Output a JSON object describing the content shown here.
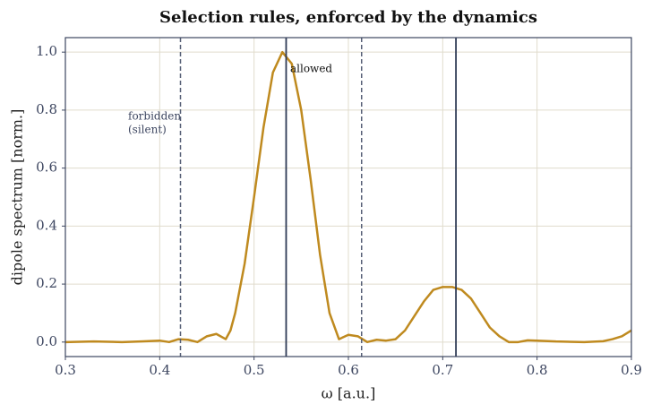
{
  "chart_data": {
    "type": "line",
    "title": "Selection rules, enforced by the dynamics",
    "xlabel": "ω  [a.u.]",
    "ylabel": "dipole spectrum  [norm.]",
    "x": [
      0.3,
      0.33,
      0.36,
      0.38,
      0.4,
      0.41,
      0.42,
      0.43,
      0.44,
      0.45,
      0.46,
      0.47,
      0.475,
      0.48,
      0.49,
      0.5,
      0.51,
      0.52,
      0.53,
      0.54,
      0.55,
      0.56,
      0.57,
      0.58,
      0.59,
      0.6,
      0.61,
      0.62,
      0.63,
      0.64,
      0.65,
      0.66,
      0.67,
      0.68,
      0.69,
      0.7,
      0.71,
      0.72,
      0.73,
      0.74,
      0.75,
      0.76,
      0.77,
      0.78,
      0.79,
      0.8,
      0.82,
      0.85,
      0.87,
      0.88,
      0.89,
      0.9
    ],
    "series": [
      {
        "color": "#bf8a1f",
        "values": [
          0.0,
          0.002,
          0.0,
          0.002,
          0.005,
          0.0,
          0.01,
          0.008,
          0.0,
          0.02,
          0.028,
          0.01,
          0.04,
          0.1,
          0.27,
          0.5,
          0.74,
          0.93,
          1.0,
          0.96,
          0.8,
          0.56,
          0.3,
          0.1,
          0.01,
          0.025,
          0.02,
          0.0,
          0.008,
          0.005,
          0.01,
          0.04,
          0.09,
          0.14,
          0.18,
          0.19,
          0.19,
          0.18,
          0.15,
          0.1,
          0.05,
          0.02,
          0.0,
          0.0,
          0.006,
          0.005,
          0.002,
          0.0,
          0.003,
          0.01,
          0.02,
          0.04
        ]
      }
    ],
    "vlines": [
      {
        "x": 0.422,
        "style": "dashed"
      },
      {
        "x": 0.534,
        "style": "solid"
      },
      {
        "x": 0.614,
        "style": "dashed"
      },
      {
        "x": 0.714,
        "style": "solid"
      }
    ],
    "annotations": [
      {
        "lines": [
          "allowed"
        ]
      },
      {
        "lines": [
          "forbidden",
          "(silent)"
        ]
      }
    ],
    "xlim": [
      0.3,
      0.9
    ],
    "ylim": [
      -0.05,
      1.05
    ],
    "xticks": [
      0.3,
      0.4,
      0.5,
      0.6,
      0.7,
      0.8,
      0.9
    ],
    "yticks": [
      {
        "value": 0,
        "label": "0.0"
      },
      0.2,
      0.4,
      0.6,
      0.8,
      {
        "value": 1,
        "label": "1.0"
      }
    ],
    "grid": true
  }
}
